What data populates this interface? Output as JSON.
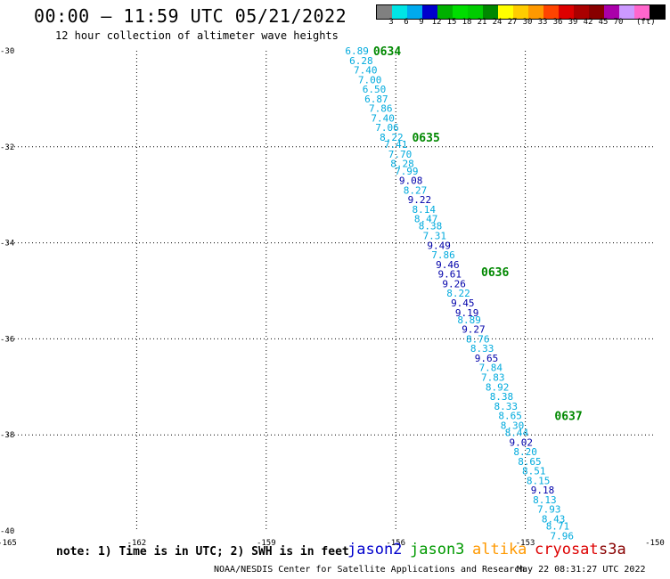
{
  "title": "00:00 – 11:59 UTC 05/21/2022",
  "subtitle": "12 hour collection of altimeter wave heights",
  "colorbar": {
    "colors": [
      "#808080",
      "#00e5e5",
      "#00aaee",
      "#0000cc",
      "#00b000",
      "#00dd00",
      "#00cc00",
      "#008800",
      "#ffff00",
      "#ffcc00",
      "#ff9900",
      "#ff4400",
      "#dd0000",
      "#aa0000",
      "#880000",
      "#aa00aa",
      "#cc99ff",
      "#ff66cc",
      "#000000"
    ],
    "labels": [
      "3",
      "6",
      "9",
      "12",
      "15",
      "18",
      "21",
      "24",
      "27",
      "30",
      "33",
      "36",
      "39",
      "42",
      "45",
      "70"
    ],
    "unit": "(ft)"
  },
  "chart_data": {
    "type": "scatter",
    "xlim": [
      -165,
      -150
    ],
    "ylim": [
      -40,
      -30
    ],
    "x_ticks": [
      {
        "value": -165,
        "label": "-165"
      },
      {
        "value": -162,
        "label": "-162"
      },
      {
        "value": -159,
        "label": "-159"
      },
      {
        "value": -156,
        "label": "-156"
      },
      {
        "value": -153,
        "label": "-153"
      },
      {
        "value": -150,
        "label": "-150"
      }
    ],
    "y_ticks": [
      {
        "value": -30,
        "label": "-30"
      },
      {
        "value": -32,
        "label": "-32"
      },
      {
        "value": -34,
        "label": "-34"
      },
      {
        "value": -36,
        "label": "-36"
      },
      {
        "value": -38,
        "label": "-38"
      },
      {
        "value": -40,
        "label": "-40"
      }
    ],
    "grid": true,
    "colors": {
      "light": "#00aadd",
      "dark": "#0000aa",
      "time": "#008800"
    },
    "points": [
      {
        "lon": -156.9,
        "lat": -30.0,
        "swh": "6.89",
        "dark": false
      },
      {
        "lon": -156.8,
        "lat": -30.2,
        "swh": "6.28",
        "dark": false
      },
      {
        "lon": -156.7,
        "lat": -30.4,
        "swh": "7.40",
        "dark": false
      },
      {
        "lon": -156.6,
        "lat": -30.6,
        "swh": "7.00",
        "dark": false
      },
      {
        "lon": -156.5,
        "lat": -30.8,
        "swh": "6.50",
        "dark": false
      },
      {
        "lon": -156.45,
        "lat": -31.0,
        "swh": "6.87",
        "dark": false
      },
      {
        "lon": -156.35,
        "lat": -31.2,
        "swh": "7.86",
        "dark": false
      },
      {
        "lon": -156.3,
        "lat": -31.4,
        "swh": "7.40",
        "dark": false
      },
      {
        "lon": -156.2,
        "lat": -31.6,
        "swh": "7.06",
        "dark": false
      },
      {
        "lon": -156.1,
        "lat": -31.8,
        "swh": "8.22",
        "dark": false
      },
      {
        "lon": -156.0,
        "lat": -31.95,
        "swh": "7.41",
        "dark": false
      },
      {
        "lon": -155.9,
        "lat": -32.15,
        "swh": "7.70",
        "dark": false
      },
      {
        "lon": -155.85,
        "lat": -32.35,
        "swh": "8.28",
        "dark": false
      },
      {
        "lon": -155.75,
        "lat": -32.5,
        "swh": "7.99",
        "dark": false
      },
      {
        "lon": -155.65,
        "lat": -32.7,
        "swh": "9.08",
        "dark": true
      },
      {
        "lon": -155.55,
        "lat": -32.9,
        "swh": "8.27",
        "dark": false
      },
      {
        "lon": -155.45,
        "lat": -33.1,
        "swh": "9.22",
        "dark": true
      },
      {
        "lon": -155.35,
        "lat": -33.3,
        "swh": "8.14",
        "dark": false
      },
      {
        "lon": -155.3,
        "lat": -33.5,
        "swh": "8.47",
        "dark": false
      },
      {
        "lon": -155.2,
        "lat": -33.65,
        "swh": "8.38",
        "dark": false
      },
      {
        "lon": -155.1,
        "lat": -33.85,
        "swh": "7.31",
        "dark": false
      },
      {
        "lon": -155.0,
        "lat": -34.05,
        "swh": "9.49",
        "dark": true
      },
      {
        "lon": -154.9,
        "lat": -34.25,
        "swh": "7.86",
        "dark": false
      },
      {
        "lon": -154.8,
        "lat": -34.45,
        "swh": "9.46",
        "dark": true
      },
      {
        "lon": -154.75,
        "lat": -34.65,
        "swh": "9.61",
        "dark": true
      },
      {
        "lon": -154.65,
        "lat": -34.85,
        "swh": "9.26",
        "dark": true
      },
      {
        "lon": -154.55,
        "lat": -35.05,
        "swh": "8.22",
        "dark": false
      },
      {
        "lon": -154.45,
        "lat": -35.25,
        "swh": "9.45",
        "dark": true
      },
      {
        "lon": -154.35,
        "lat": -35.45,
        "swh": "9.19",
        "dark": true
      },
      {
        "lon": -154.3,
        "lat": -35.6,
        "swh": "8.89",
        "dark": false
      },
      {
        "lon": -154.2,
        "lat": -35.8,
        "swh": "9.27",
        "dark": true
      },
      {
        "lon": -154.1,
        "lat": -36.0,
        "swh": "8.76",
        "dark": false
      },
      {
        "lon": -154.0,
        "lat": -36.2,
        "swh": "8.33",
        "dark": false
      },
      {
        "lon": -153.9,
        "lat": -36.4,
        "swh": "9.65",
        "dark": true
      },
      {
        "lon": -153.8,
        "lat": -36.6,
        "swh": "7.84",
        "dark": false
      },
      {
        "lon": -153.75,
        "lat": -36.8,
        "swh": "7.83",
        "dark": false
      },
      {
        "lon": -153.65,
        "lat": -37.0,
        "swh": "8.92",
        "dark": false
      },
      {
        "lon": -153.55,
        "lat": -37.2,
        "swh": "8.38",
        "dark": false
      },
      {
        "lon": -153.45,
        "lat": -37.4,
        "swh": "8.33",
        "dark": false
      },
      {
        "lon": -153.35,
        "lat": -37.6,
        "swh": "8.65",
        "dark": false
      },
      {
        "lon": -153.3,
        "lat": -37.8,
        "swh": "8.30",
        "dark": false
      },
      {
        "lon": -153.2,
        "lat": -37.95,
        "swh": "8.44",
        "dark": false
      },
      {
        "lon": -153.1,
        "lat": -38.15,
        "swh": "9.02",
        "dark": true
      },
      {
        "lon": -153.0,
        "lat": -38.35,
        "swh": "8.20",
        "dark": false
      },
      {
        "lon": -152.9,
        "lat": -38.55,
        "swh": "8.65",
        "dark": false
      },
      {
        "lon": -152.8,
        "lat": -38.75,
        "swh": "8.51",
        "dark": false
      },
      {
        "lon": -152.7,
        "lat": -38.95,
        "swh": "8.15",
        "dark": false
      },
      {
        "lon": -152.6,
        "lat": -39.15,
        "swh": "9.18",
        "dark": true
      },
      {
        "lon": -152.55,
        "lat": -39.35,
        "swh": "8.13",
        "dark": false
      },
      {
        "lon": -152.45,
        "lat": -39.55,
        "swh": "7.93",
        "dark": false
      },
      {
        "lon": -152.35,
        "lat": -39.75,
        "swh": "8.43",
        "dark": false
      },
      {
        "lon": -152.25,
        "lat": -39.9,
        "swh": "8.71",
        "dark": false
      },
      {
        "lon": -152.15,
        "lat": -40.1,
        "swh": "7.96",
        "dark": false
      }
    ],
    "time_labels": [
      {
        "lon": -156.2,
        "lat": -30.0,
        "text": "0634"
      },
      {
        "lon": -155.3,
        "lat": -31.8,
        "text": "0635"
      },
      {
        "lon": -153.7,
        "lat": -34.6,
        "text": "0636"
      },
      {
        "lon": -152.0,
        "lat": -37.6,
        "text": "0637"
      }
    ]
  },
  "footer": {
    "note": "note: 1) Time is in UTC; 2) SWH is in feet",
    "satellites": [
      {
        "name": "jason2",
        "color": "#0000cc"
      },
      {
        "name": "jason3",
        "color": "#009900"
      },
      {
        "name": "altika",
        "color": "#ff9900"
      },
      {
        "name": "cryosat",
        "color": "#dd0000"
      },
      {
        "name": "s3a",
        "color": "#880000"
      }
    ],
    "credit": "NOAA/NESDIS Center for Satellite Applications and Research",
    "stamp": "May 22 08:31:27 UTC 2022"
  }
}
